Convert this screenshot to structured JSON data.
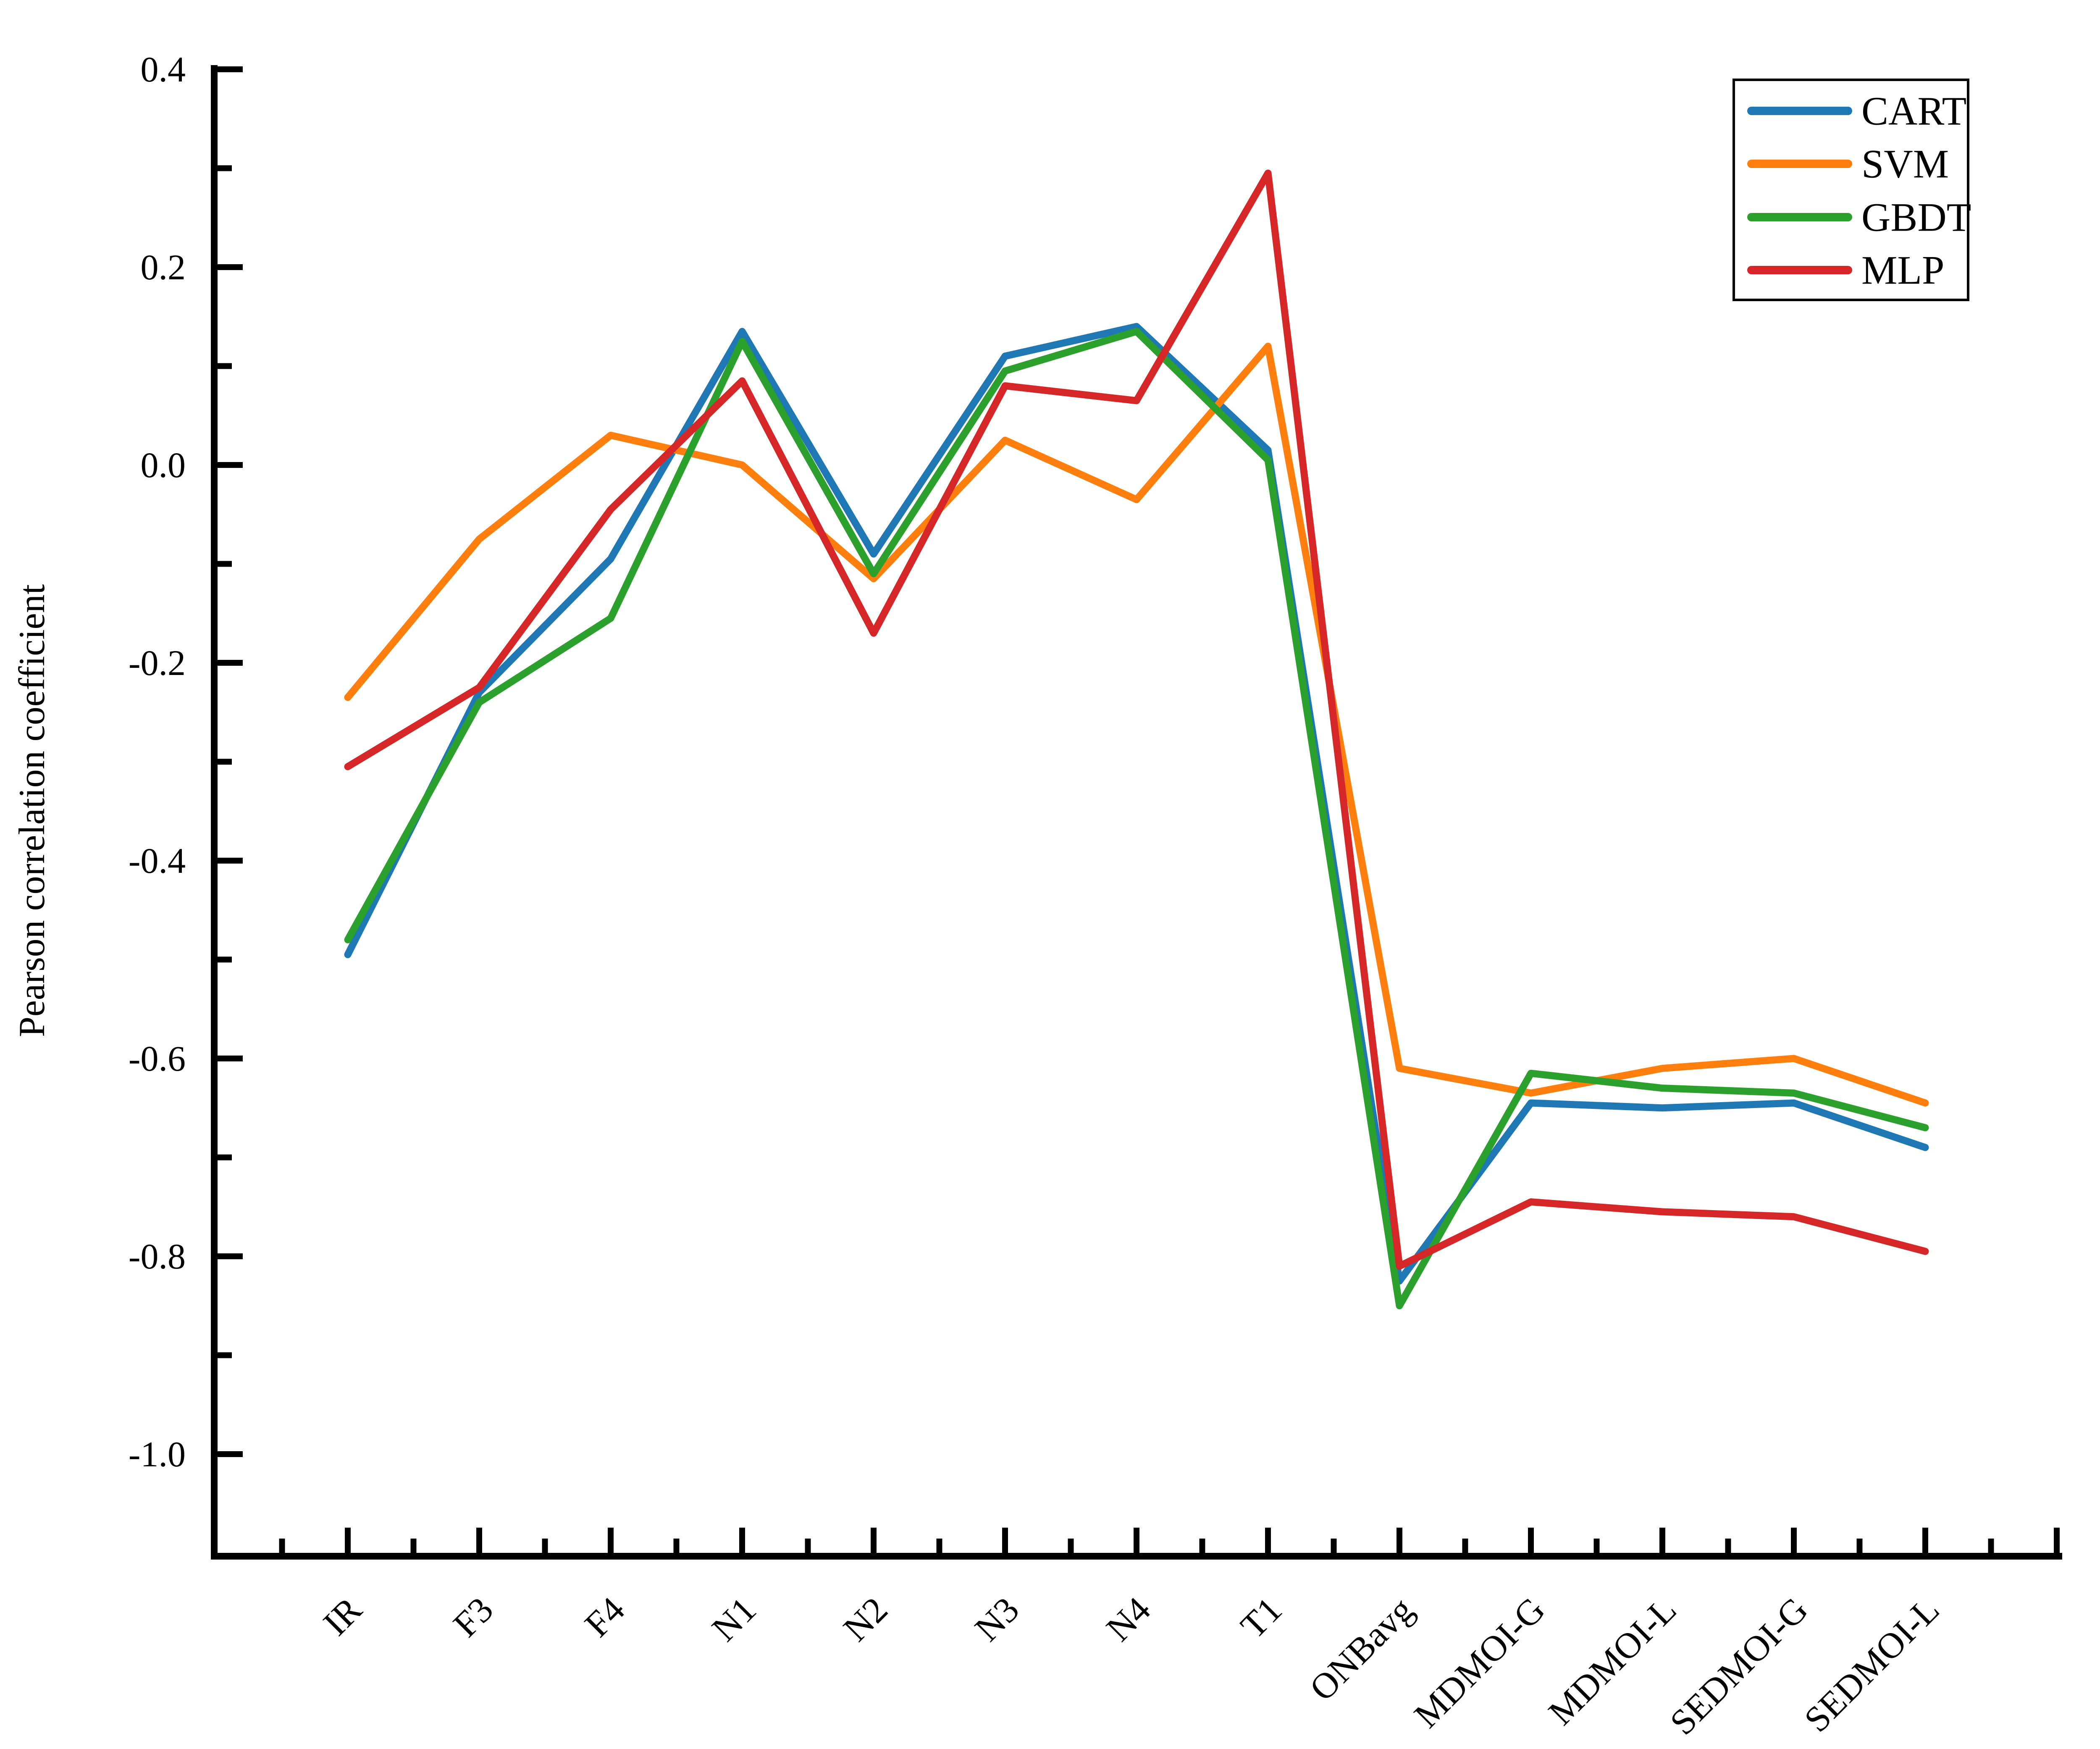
{
  "figure": {
    "background": "#ffffff",
    "axis_color": "#000000"
  },
  "chart_data": {
    "type": "line",
    "title": "",
    "xlabel": "",
    "ylabel": "Pearson correlation coefficient",
    "grid": false,
    "legend": {
      "position": "top-right",
      "border_color": "#000000",
      "background": "#ffffff",
      "entries": [
        "CART",
        "SVM",
        "GBDT",
        "MLP"
      ]
    },
    "categories": [
      "IR",
      "F3",
      "F4",
      "N1",
      "N2",
      "N3",
      "N4",
      "T1",
      "ONBavg",
      "MDMOI-G",
      "MDMOI-L",
      "SEDMOI-G",
      "SEDMOI-L"
    ],
    "series": [
      {
        "name": "CART",
        "color": "#1f77b4",
        "values": [
          -0.495,
          -0.23,
          -0.095,
          0.135,
          -0.09,
          0.11,
          0.14,
          0.015,
          -0.825,
          -0.645,
          -0.65,
          -0.645,
          -0.69
        ]
      },
      {
        "name": "SVM",
        "color": "#ff7f0e",
        "values": [
          -0.235,
          -0.075,
          0.03,
          0.0,
          -0.115,
          0.025,
          -0.035,
          0.12,
          -0.61,
          -0.635,
          -0.61,
          -0.6,
          -0.645
        ]
      },
      {
        "name": "GBDT",
        "color": "#2ca02c",
        "values": [
          -0.48,
          -0.24,
          -0.155,
          0.125,
          -0.11,
          0.095,
          0.135,
          0.005,
          -0.85,
          -0.615,
          -0.63,
          -0.635,
          -0.67
        ]
      },
      {
        "name": "MLP",
        "color": "#d62728",
        "values": [
          -0.305,
          -0.225,
          -0.045,
          0.085,
          -0.17,
          0.08,
          0.065,
          0.295,
          -0.81,
          -0.745,
          -0.755,
          -0.76,
          -0.795
        ]
      }
    ],
    "y_axis": {
      "tick_labels": [
        "0.4",
        "0.2",
        "0.0",
        "-0.2",
        "-0.4",
        "-0.6",
        "-0.8",
        "-1.0"
      ],
      "tick_values": [
        0.4,
        0.2,
        0.0,
        -0.2,
        -0.4,
        -0.6,
        -0.8,
        -1.0
      ],
      "minor_tick_values": [
        0.3,
        0.1,
        -0.1,
        -0.3,
        -0.5,
        -0.7,
        -0.9
      ],
      "range": [
        -1.1,
        0.405
      ]
    }
  }
}
